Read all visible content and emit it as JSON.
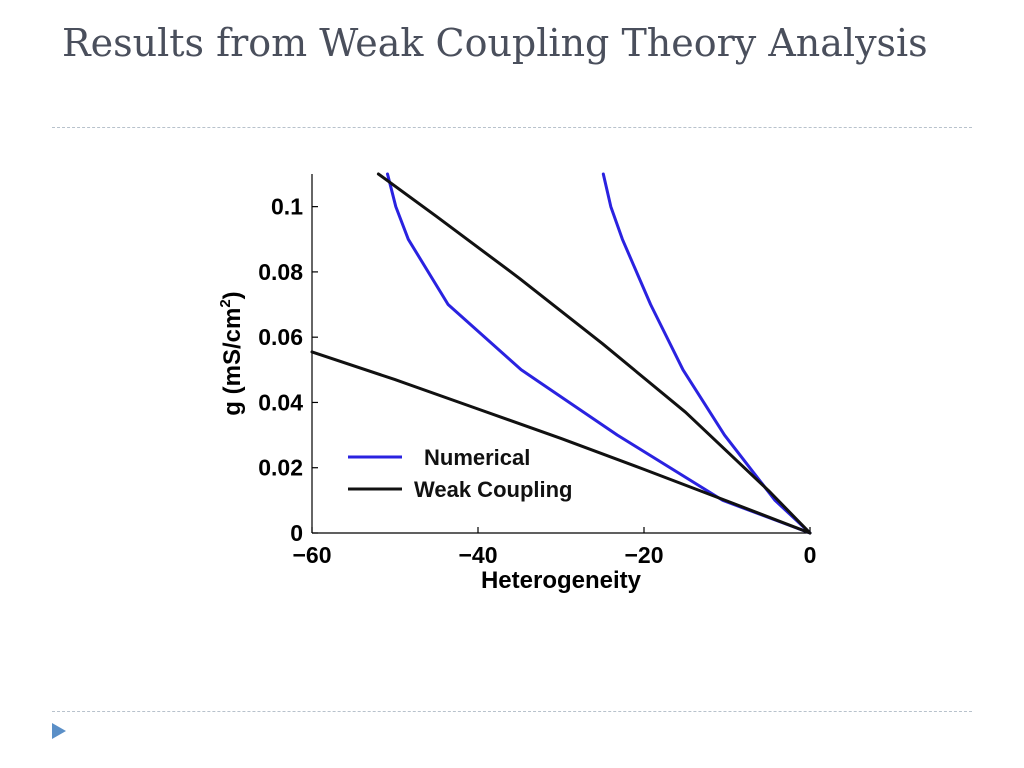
{
  "slide": {
    "title": "Results from Weak Coupling Theory Analysis"
  },
  "colors": {
    "title": "#4a4f5c",
    "divider": "#b8c2cc",
    "numerical": "#2a22e0",
    "weak_coupling": "#111111",
    "nav_arrow": "#5b8fc7"
  },
  "icons": {
    "nav": "triangle-right-icon"
  },
  "chart_data": {
    "type": "line",
    "xlabel": "Heterogeneity",
    "ylabel_main": "g (mS/cm",
    "ylabel_sup": "2",
    "ylabel_end": ")",
    "xlim": [
      -60,
      0
    ],
    "ylim": [
      0,
      0.11
    ],
    "xticks": [
      {
        "value": -60,
        "label": "−60"
      },
      {
        "value": -40,
        "label": "−40"
      },
      {
        "value": -20,
        "label": "−20"
      },
      {
        "value": 0,
        "label": "0"
      }
    ],
    "yticks": [
      {
        "value": 0,
        "label": "0"
      },
      {
        "value": 0.02,
        "label": "0.02"
      },
      {
        "value": 0.04,
        "label": "0.04"
      },
      {
        "value": 0.06,
        "label": "0.06"
      },
      {
        "value": 0.08,
        "label": "0.08"
      },
      {
        "value": 0.1,
        "label": "0.1"
      }
    ],
    "grid": false,
    "legend": {
      "placement": "lower-left",
      "entries": [
        {
          "label": "Numerical",
          "color": "#2a22e0"
        },
        {
          "label": "Weak Coupling",
          "color": "#111111"
        }
      ]
    },
    "series": [
      {
        "group": "Numerical",
        "color": "#2a22e0",
        "points": [
          [
            -50.9,
            0.11
          ],
          [
            -49.9,
            0.1
          ],
          [
            -48.4,
            0.09
          ],
          [
            -43.6,
            0.07
          ],
          [
            -34.8,
            0.05
          ],
          [
            -23.2,
            0.03
          ],
          [
            -10.5,
            0.01
          ],
          [
            0,
            0
          ]
        ]
      },
      {
        "group": "Numerical",
        "color": "#2a22e0",
        "points": [
          [
            -24.9,
            0.11
          ],
          [
            -24.0,
            0.1
          ],
          [
            -22.6,
            0.09
          ],
          [
            -19.2,
            0.07
          ],
          [
            -15.3,
            0.05
          ],
          [
            -10.3,
            0.03
          ],
          [
            -4.2,
            0.01
          ],
          [
            0,
            0
          ]
        ]
      },
      {
        "group": "Weak Coupling",
        "color": "#111111",
        "points": [
          [
            -52,
            0.11
          ],
          [
            -45,
            0.097
          ],
          [
            -35,
            0.078
          ],
          [
            -25,
            0.058
          ],
          [
            -15,
            0.037
          ],
          [
            -5,
            0.013
          ],
          [
            0,
            0
          ]
        ]
      },
      {
        "group": "Weak Coupling",
        "color": "#111111",
        "points": [
          [
            -60,
            0.0555
          ],
          [
            -50,
            0.047
          ],
          [
            -40,
            0.038
          ],
          [
            -30,
            0.029
          ],
          [
            -20,
            0.0195
          ],
          [
            -10,
            0.0098
          ],
          [
            0,
            0
          ]
        ]
      }
    ]
  }
}
